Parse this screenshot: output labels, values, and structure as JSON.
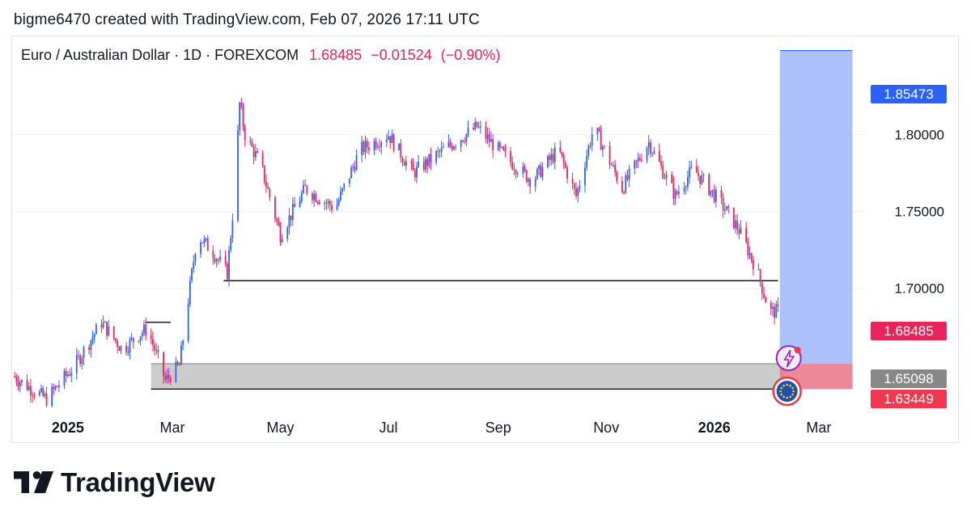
{
  "header": {
    "attribution": "bigme6470 created with TradingView.com, Feb 07, 2026 17:11 UTC"
  },
  "legend": {
    "symbol": "Euro / Australian Dollar · 1D · FOREXCOM",
    "last": "1.68485",
    "change": "−0.01524",
    "change_pct": "(−0.90%)"
  },
  "brand": {
    "name": "TradingView"
  },
  "colors": {
    "up": "#2962ff",
    "down": "#e8245a",
    "target_zone": "#a8bdfb",
    "support_zone": "#c7c7c7",
    "stop_zone": "#ea7d8e"
  },
  "chart_data": {
    "type": "candlestick",
    "timeframe": "1D",
    "x_range": [
      "2024-12-01",
      "2026-03-23"
    ],
    "ylim": [
      1.621,
      1.856
    ],
    "x_ticks": [
      {
        "date": "2025-01-01",
        "label": "2025",
        "bold": true
      },
      {
        "date": "2025-03-01",
        "label": "Mar",
        "bold": false
      },
      {
        "date": "2025-05-01",
        "label": "May",
        "bold": false
      },
      {
        "date": "2025-07-01",
        "label": "Jul",
        "bold": false
      },
      {
        "date": "2025-09-01",
        "label": "Sep",
        "bold": false
      },
      {
        "date": "2025-11-01",
        "label": "Nov",
        "bold": false
      },
      {
        "date": "2026-01-01",
        "label": "2026",
        "bold": true
      },
      {
        "date": "2026-03-01",
        "label": "Mar",
        "bold": false
      }
    ],
    "y_ticks": [
      {
        "value": 1.8,
        "label": "1.80000"
      },
      {
        "value": 1.75,
        "label": "1.75000"
      },
      {
        "value": 1.7,
        "label": "1.70000"
      }
    ],
    "price_labels": [
      {
        "value": 1.85473,
        "label": "1.85473",
        "color": "#2962ff"
      },
      {
        "value": 1.68485,
        "label": "1.68485",
        "color": "#e8245a"
      },
      {
        "value": 1.65098,
        "label": "1.65098",
        "color": "#888888"
      },
      {
        "value": 1.63449,
        "label": "1.63449",
        "color": "#f0384e"
      }
    ],
    "closes": [
      {
        "date": "2024-12-01",
        "close": 1.643
      },
      {
        "date": "2024-12-20",
        "close": 1.628
      },
      {
        "date": "2025-01-05",
        "close": 1.65
      },
      {
        "date": "2025-01-20",
        "close": 1.678
      },
      {
        "date": "2025-02-01",
        "close": 1.66
      },
      {
        "date": "2025-02-10",
        "close": 1.67
      },
      {
        "date": "2025-02-15",
        "close": 1.674
      },
      {
        "date": "2025-02-25",
        "close": 1.64
      },
      {
        "date": "2025-03-05",
        "close": 1.65
      },
      {
        "date": "2025-03-15",
        "close": 1.735
      },
      {
        "date": "2025-03-25",
        "close": 1.722
      },
      {
        "date": "2025-04-01",
        "close": 1.71
      },
      {
        "date": "2025-04-05",
        "close": 1.76
      },
      {
        "date": "2025-04-08",
        "close": 1.82
      },
      {
        "date": "2025-04-11",
        "close": 1.8
      },
      {
        "date": "2025-04-20",
        "close": 1.78
      },
      {
        "date": "2025-05-01",
        "close": 1.735
      },
      {
        "date": "2025-05-15",
        "close": 1.765
      },
      {
        "date": "2025-06-01",
        "close": 1.752
      },
      {
        "date": "2025-06-15",
        "close": 1.79
      },
      {
        "date": "2025-07-01",
        "close": 1.8
      },
      {
        "date": "2025-07-15",
        "close": 1.775
      },
      {
        "date": "2025-08-01",
        "close": 1.79
      },
      {
        "date": "2025-08-20",
        "close": 1.805
      },
      {
        "date": "2025-09-01",
        "close": 1.79
      },
      {
        "date": "2025-09-20",
        "close": 1.77
      },
      {
        "date": "2025-10-05",
        "close": 1.79
      },
      {
        "date": "2025-10-15",
        "close": 1.76
      },
      {
        "date": "2025-10-25",
        "close": 1.805
      },
      {
        "date": "2025-11-10",
        "close": 1.765
      },
      {
        "date": "2025-11-25",
        "close": 1.795
      },
      {
        "date": "2025-12-10",
        "close": 1.76
      },
      {
        "date": "2025-12-20",
        "close": 1.778
      },
      {
        "date": "2026-01-05",
        "close": 1.755
      },
      {
        "date": "2026-01-15",
        "close": 1.738
      },
      {
        "date": "2026-01-25",
        "close": 1.712
      },
      {
        "date": "2026-02-01",
        "close": 1.685
      },
      {
        "date": "2026-02-06",
        "close": 1.68485
      }
    ],
    "annotations": [
      {
        "kind": "hline",
        "from": "2025-02-14",
        "to": "2025-02-28",
        "value": 1.678
      },
      {
        "kind": "hline",
        "from": "2025-03-30",
        "to": "2026-02-06",
        "value": 1.705
      },
      {
        "kind": "zone",
        "from": "2025-02-17",
        "to": "2026-02-10",
        "low": 1.6345,
        "high": 1.651,
        "colorKey": "support_zone"
      },
      {
        "kind": "zone",
        "from": "2026-02-07",
        "to": "2026-03-20",
        "low": 1.651,
        "high": 1.8547,
        "colorKey": "target_zone"
      },
      {
        "kind": "zone",
        "from": "2026-02-07",
        "to": "2026-03-20",
        "low": 1.6345,
        "high": 1.651,
        "colorKey": "stop_zone"
      }
    ]
  }
}
